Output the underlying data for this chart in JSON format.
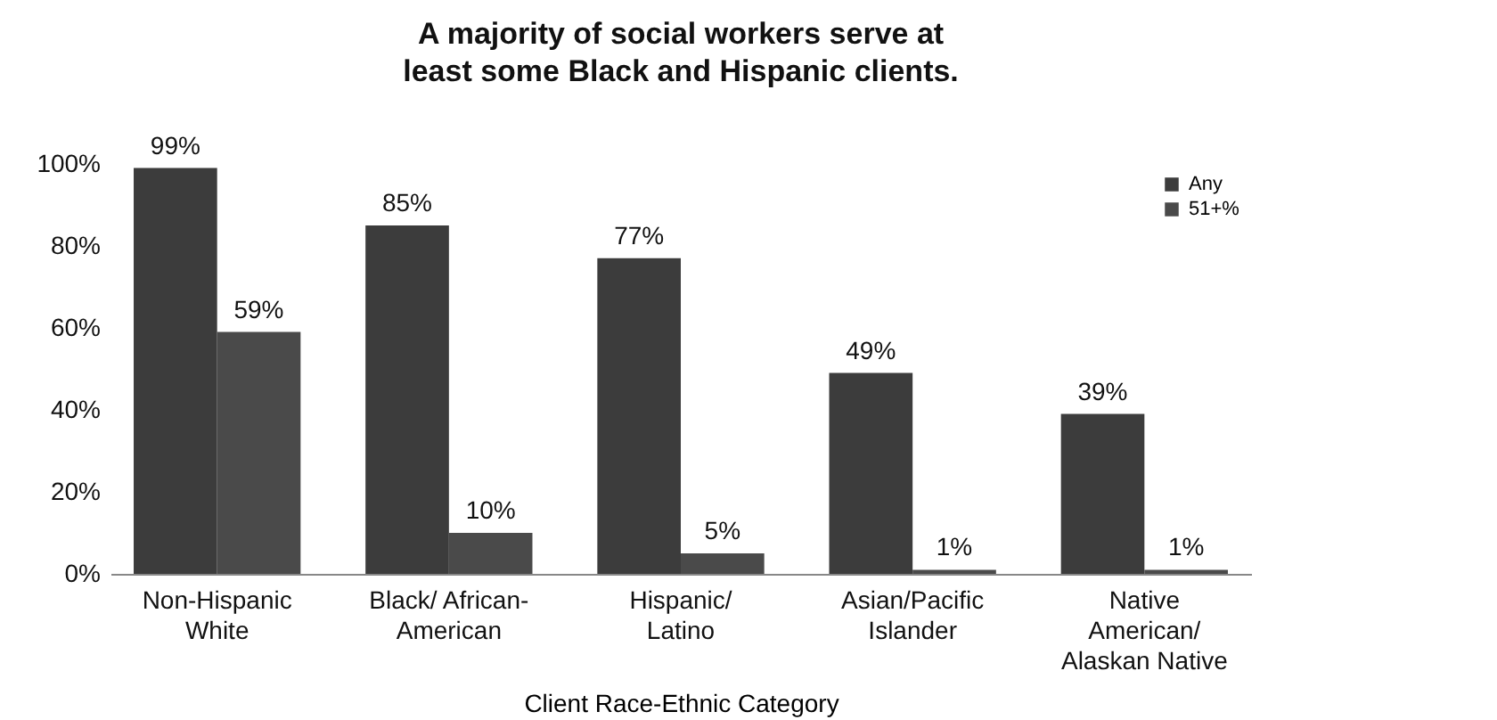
{
  "chart_data": {
    "type": "bar",
    "title": "A majority of social workers serve at least some Black and Hispanic clients.",
    "xlabel": "Client Race-Ethnic Category",
    "categories": [
      "Non-Hispanic\nWhite",
      "Black/ African-\nAmerican",
      "Hispanic/\nLatino",
      "Asian/Pacific\nIslander",
      "Native\nAmerican/\nAlaskan Native"
    ],
    "series": [
      {
        "name": "Any",
        "color": "#3c3c3c",
        "values": [
          99,
          85,
          77,
          49,
          39
        ],
        "value_labels": [
          "99%",
          "85%",
          "77%",
          "49%",
          "39%"
        ]
      },
      {
        "name": "51+%",
        "color": "#4a4a4a",
        "values": [
          59,
          10,
          5,
          1,
          1
        ],
        "value_labels": [
          "59%",
          "10%",
          "5%",
          "1%",
          "1%"
        ]
      }
    ],
    "ylim": [
      0,
      100
    ],
    "yticks": [
      {
        "value": 0,
        "label": "0%"
      },
      {
        "value": 20,
        "label": "20%"
      },
      {
        "value": 40,
        "label": "40%"
      },
      {
        "value": 60,
        "label": "60%"
      },
      {
        "value": 80,
        "label": "80%"
      },
      {
        "value": 100,
        "label": "100%"
      }
    ],
    "grid": false,
    "legend": "top right"
  }
}
